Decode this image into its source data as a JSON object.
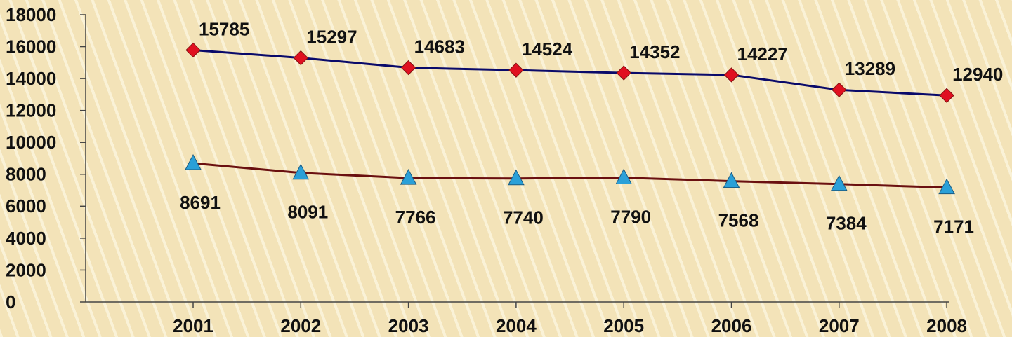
{
  "chart_data": {
    "type": "line",
    "categories": [
      "2001",
      "2002",
      "2003",
      "2004",
      "2005",
      "2006",
      "2007",
      "2008"
    ],
    "series": [
      {
        "color": "#0a0a6a",
        "marker": "diamond",
        "marker_color": "#e01020",
        "values": [
          15785,
          15297,
          14683,
          14524,
          14352,
          14227,
          13289,
          12940
        ]
      },
      {
        "color": "#6a1010",
        "marker": "triangle",
        "marker_color": "#2aa0d8",
        "values": [
          8691,
          8091,
          7766,
          7740,
          7790,
          7568,
          7384,
          7171
        ]
      }
    ],
    "ylim": [
      0,
      18000
    ],
    "yticks": [
      0,
      2000,
      4000,
      6000,
      8000,
      10000,
      12000,
      14000,
      16000,
      18000
    ]
  }
}
